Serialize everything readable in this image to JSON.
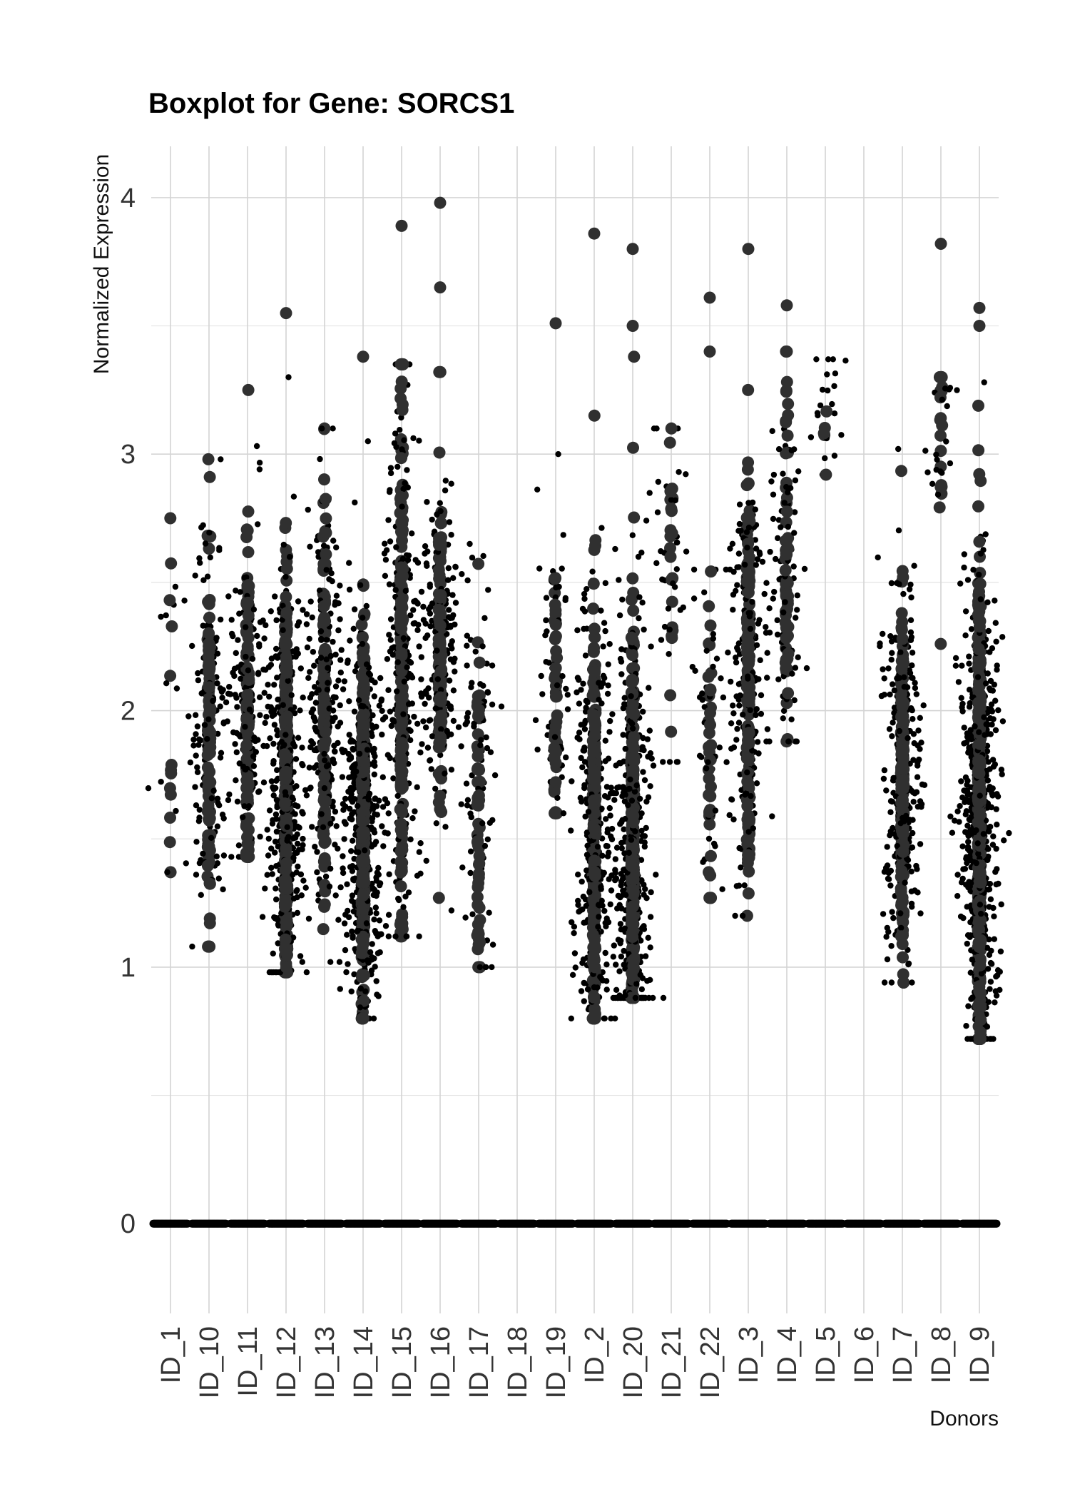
{
  "chart_data": {
    "type": "scatter",
    "title": "Boxplot for Gene: SORCS1",
    "xlabel": "Donors",
    "ylabel": "Normalized Expression",
    "ylim": [
      -0.35,
      4.2
    ],
    "y_ticks": [
      0,
      1,
      2,
      3,
      4
    ],
    "grid": true,
    "legend": "none",
    "categories": [
      "ID_1",
      "ID_10",
      "ID_11",
      "ID_12",
      "ID_13",
      "ID_14",
      "ID_15",
      "ID_16",
      "ID_17",
      "ID_18",
      "ID_19",
      "ID_2",
      "ID_20",
      "ID_21",
      "ID_22",
      "ID_3",
      "ID_4",
      "ID_5",
      "ID_6",
      "ID_7",
      "ID_8",
      "ID_9"
    ],
    "series": [
      {
        "category": "ID_1",
        "zero_count": 400,
        "nonzero": {
          "n": 25,
          "center": 2.0,
          "spread": 0.4,
          "min": 1.37,
          "max": 2.75
        },
        "outliers": []
      },
      {
        "category": "ID_10",
        "zero_count": 400,
        "nonzero": {
          "n": 230,
          "center": 1.9,
          "spread": 0.4,
          "min": 1.08,
          "max": 2.98
        },
        "outliers": []
      },
      {
        "category": "ID_11",
        "zero_count": 400,
        "nonzero": {
          "n": 260,
          "center": 2.05,
          "spread": 0.35,
          "min": 1.43,
          "max": 3.25
        },
        "outliers": []
      },
      {
        "category": "ID_12",
        "zero_count": 400,
        "nonzero": {
          "n": 560,
          "center": 1.7,
          "spread": 0.4,
          "min": 0.98,
          "max": 3.3
        },
        "outliers": [
          3.55
        ]
      },
      {
        "category": "ID_13",
        "zero_count": 400,
        "nonzero": {
          "n": 320,
          "center": 2.0,
          "spread": 0.42,
          "min": 1.02,
          "max": 3.1
        },
        "outliers": []
      },
      {
        "category": "ID_14",
        "zero_count": 400,
        "nonzero": {
          "n": 700,
          "center": 1.55,
          "spread": 0.4,
          "min": 0.8,
          "max": 3.05
        },
        "outliers": [
          3.38
        ]
      },
      {
        "category": "ID_15",
        "zero_count": 400,
        "nonzero": {
          "n": 380,
          "center": 2.2,
          "spread": 0.55,
          "min": 1.12,
          "max": 3.35
        },
        "outliers": [
          3.89
        ]
      },
      {
        "category": "ID_16",
        "zero_count": 400,
        "nonzero": {
          "n": 300,
          "center": 2.25,
          "spread": 0.3,
          "min": 1.27,
          "max": 3.32
        },
        "outliers": [
          3.65,
          3.98
        ]
      },
      {
        "category": "ID_17",
        "zero_count": 400,
        "nonzero": {
          "n": 150,
          "center": 1.7,
          "spread": 0.38,
          "min": 1.0,
          "max": 2.65
        },
        "outliers": []
      },
      {
        "category": "ID_18",
        "zero_count": 400,
        "nonzero": {
          "n": 0,
          "center": 0,
          "spread": 0,
          "min": 0,
          "max": 0
        },
        "outliers": []
      },
      {
        "category": "ID_19",
        "zero_count": 400,
        "nonzero": {
          "n": 110,
          "center": 2.05,
          "spread": 0.35,
          "min": 1.6,
          "max": 3.0
        },
        "outliers": [
          3.51
        ]
      },
      {
        "category": "ID_2",
        "zero_count": 400,
        "nonzero": {
          "n": 520,
          "center": 1.55,
          "spread": 0.42,
          "min": 0.8,
          "max": 3.15
        },
        "outliers": [
          3.86
        ]
      },
      {
        "category": "ID_20",
        "zero_count": 400,
        "nonzero": {
          "n": 720,
          "center": 1.4,
          "spread": 0.45,
          "min": 0.88,
          "max": 3.38
        },
        "outliers": [
          3.5,
          3.8
        ]
      },
      {
        "category": "ID_21",
        "zero_count": 400,
        "nonzero": {
          "n": 60,
          "center": 2.55,
          "spread": 0.35,
          "min": 1.8,
          "max": 3.1
        },
        "outliers": []
      },
      {
        "category": "ID_22",
        "zero_count": 400,
        "nonzero": {
          "n": 80,
          "center": 1.9,
          "spread": 0.35,
          "min": 1.27,
          "max": 2.55
        },
        "outliers": [
          3.4,
          3.61
        ]
      },
      {
        "category": "ID_3",
        "zero_count": 400,
        "nonzero": {
          "n": 330,
          "center": 2.1,
          "spread": 0.4,
          "min": 1.2,
          "max": 3.25
        },
        "outliers": [
          3.8
        ]
      },
      {
        "category": "ID_4",
        "zero_count": 400,
        "nonzero": {
          "n": 140,
          "center": 2.5,
          "spread": 0.4,
          "min": 1.88,
          "max": 3.4
        },
        "outliers": [
          3.58
        ]
      },
      {
        "category": "ID_5",
        "zero_count": 400,
        "nonzero": {
          "n": 25,
          "center": 3.15,
          "spread": 0.14,
          "min": 2.92,
          "max": 3.37
        },
        "outliers": []
      },
      {
        "category": "ID_6",
        "zero_count": 400,
        "nonzero": {
          "n": 0,
          "center": 0,
          "spread": 0,
          "min": 0,
          "max": 0
        },
        "outliers": []
      },
      {
        "category": "ID_7",
        "zero_count": 400,
        "nonzero": {
          "n": 460,
          "center": 1.7,
          "spread": 0.35,
          "min": 0.94,
          "max": 3.02
        },
        "outliers": []
      },
      {
        "category": "ID_8",
        "zero_count": 400,
        "nonzero": {
          "n": 40,
          "center": 3.1,
          "spread": 0.15,
          "min": 2.26,
          "max": 3.3
        },
        "outliers": [
          3.82
        ]
      },
      {
        "category": "ID_9",
        "zero_count": 400,
        "nonzero": {
          "n": 950,
          "center": 1.55,
          "spread": 0.45,
          "min": 0.72,
          "max": 3.28
        },
        "outliers": [
          3.5,
          3.57
        ]
      }
    ]
  }
}
